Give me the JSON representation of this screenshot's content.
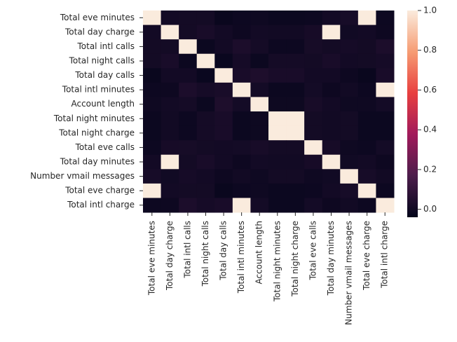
{
  "chart_data": {
    "type": "heatmap",
    "categories": [
      "Total eve minutes",
      "Total day charge",
      "Total intl calls",
      "Total night calls",
      "Total day calls",
      "Total intl minutes",
      "Account length",
      "Total night minutes",
      "Total night charge",
      "Total eve calls",
      "Total day minutes",
      "Number vmail messages",
      "Total eve charge",
      "Total intl charge"
    ],
    "values": [
      [
        1,
        0.007,
        0.008,
        0.008,
        -0.021,
        -0.011,
        -0.006,
        -0.013,
        -0.013,
        -0.011,
        0.007,
        0.018,
        1,
        -0.011
      ],
      [
        0.007,
        1,
        0.008,
        0.023,
        0.007,
        -0.01,
        0.006,
        0.004,
        0.004,
        0.016,
        1,
        0.001,
        0.007,
        -0.01
      ],
      [
        0.008,
        0.008,
        1,
        -0.014,
        0.005,
        0.032,
        0.01,
        -0.012,
        -0.012,
        0.017,
        0.008,
        0.014,
        0.008,
        0.032
      ],
      [
        0.008,
        0.023,
        -0.014,
        1,
        -0.02,
        0.014,
        -0.013,
        0.011,
        0.011,
        0.008,
        0.023,
        0.007,
        0.008,
        0.014
      ],
      [
        -0.021,
        0.007,
        0.005,
        -0.02,
        1,
        0.022,
        0.038,
        0.023,
        0.023,
        0.006,
        0.007,
        -0.01,
        -0.021,
        0.022
      ],
      [
        -0.011,
        -0.01,
        0.032,
        0.014,
        0.022,
        1,
        0.009,
        -0.015,
        -0.015,
        0.009,
        -0.01,
        0.003,
        -0.011,
        1
      ],
      [
        -0.006,
        0.006,
        0.01,
        -0.013,
        0.038,
        0.009,
        1,
        -0.009,
        -0.009,
        0.019,
        0.006,
        -0.005,
        -0.006,
        0.009
      ],
      [
        -0.013,
        0.004,
        -0.012,
        0.011,
        0.023,
        -0.015,
        -0.009,
        1,
        1,
        0.008,
        0.004,
        0.008,
        -0.013,
        -0.015
      ],
      [
        -0.013,
        0.004,
        -0.012,
        0.011,
        0.023,
        -0.015,
        -0.009,
        1,
        1,
        0.008,
        0.004,
        0.008,
        -0.013,
        -0.015
      ],
      [
        -0.011,
        0.016,
        0.017,
        0.008,
        0.006,
        0.009,
        0.019,
        0.008,
        0.008,
        1,
        0.016,
        -0.006,
        -0.011,
        0.009
      ],
      [
        0.007,
        1,
        0.008,
        0.023,
        0.007,
        -0.01,
        0.006,
        0.004,
        0.004,
        0.016,
        1,
        0.001,
        0.007,
        -0.01
      ],
      [
        0.018,
        0.001,
        0.014,
        0.007,
        -0.01,
        0.003,
        -0.005,
        0.008,
        0.008,
        -0.006,
        0.001,
        1,
        0.018,
        0.003
      ],
      [
        1,
        0.007,
        0.008,
        0.008,
        -0.021,
        -0.011,
        -0.006,
        -0.013,
        -0.013,
        -0.011,
        0.007,
        0.018,
        1,
        -0.011
      ],
      [
        -0.011,
        -0.01,
        0.032,
        0.014,
        0.022,
        1,
        0.009,
        -0.015,
        -0.015,
        0.009,
        -0.01,
        0.003,
        -0.011,
        1
      ]
    ],
    "clim": [
      -0.04,
      1
    ],
    "colors": [
      "#03051a",
      "#4c1d4b",
      "#a11a5b",
      "#e83f3f",
      "#f69c73",
      "#faebdd"
    ],
    "cticks": [
      {
        "value": 0,
        "label": "0.0"
      },
      {
        "value": 0.2,
        "label": "0.2"
      },
      {
        "value": 0.4,
        "label": "0.4"
      },
      {
        "value": 0.6,
        "label": "0.6"
      },
      {
        "value": 0.8,
        "label": "0.8"
      },
      {
        "value": 1,
        "label": "1.0"
      }
    ]
  }
}
